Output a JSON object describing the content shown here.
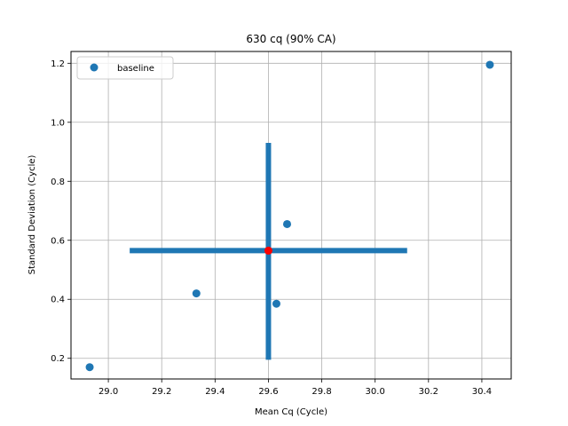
{
  "chart_data": {
    "type": "scatter",
    "title": "630 cq (90% CA)",
    "xlabel": "Mean Cq (Cycle)",
    "ylabel": "Standard Deviation (Cycle)",
    "xlim": [
      28.86,
      30.51
    ],
    "ylim": [
      0.13,
      1.24
    ],
    "xticks": [
      "29.0",
      "29.2",
      "29.4",
      "29.6",
      "29.8",
      "30.0",
      "30.2",
      "30.4"
    ],
    "yticks": [
      "0.2",
      "0.4",
      "0.6",
      "0.8",
      "1.0",
      "1.2"
    ],
    "grid": true,
    "legend": {
      "placement": "top-left",
      "entries": [
        "baseline"
      ]
    },
    "series": [
      {
        "name": "baseline",
        "color": "#1f77b4",
        "points": [
          {
            "x": 28.93,
            "y": 0.17
          },
          {
            "x": 29.33,
            "y": 0.42
          },
          {
            "x": 29.63,
            "y": 0.385
          },
          {
            "x": 29.67,
            "y": 0.655
          },
          {
            "x": 30.43,
            "y": 1.195
          }
        ]
      }
    ],
    "center_point": {
      "x": 29.6,
      "y": 0.565,
      "color": "#ff0000"
    },
    "error_bars": {
      "color": "#1f77b4",
      "x_range": [
        29.08,
        30.12
      ],
      "y_range": [
        0.195,
        0.93
      ]
    }
  }
}
